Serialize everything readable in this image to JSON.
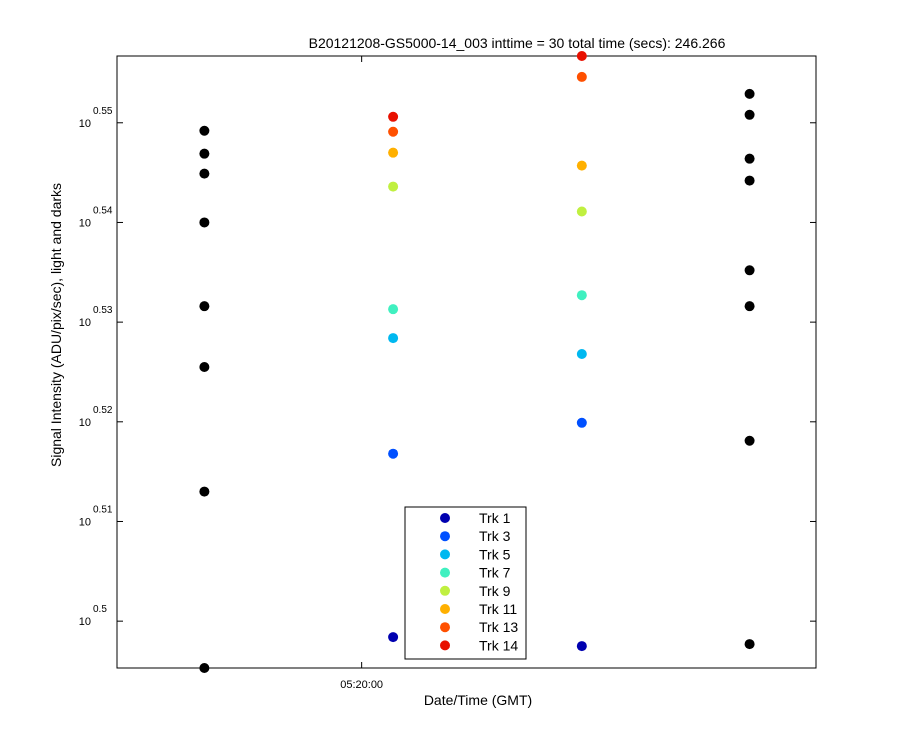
{
  "chart_data": {
    "type": "scatter",
    "title": "B20121208-GS5000-14_003 inttime = 30 total time (secs): 246.266",
    "xlabel": "Date/Time (GMT)",
    "ylabel": "Signal Intensity (ADU/pix/sec), light and darks",
    "y_scale": "log",
    "ylim_exponent": [
      0.4953,
      0.5567
    ],
    "y_ticks": [
      {
        "base": "10",
        "exp": "0.5",
        "value": 0.5
      },
      {
        "base": "10",
        "exp": "0.51",
        "value": 0.51
      },
      {
        "base": "10",
        "exp": "0.52",
        "value": 0.52
      },
      {
        "base": "10",
        "exp": "0.53",
        "value": 0.53
      },
      {
        "base": "10",
        "exp": "0.54",
        "value": 0.54
      },
      {
        "base": "10",
        "exp": "0.55",
        "value": 0.55
      }
    ],
    "x_ticks": [
      {
        "label": "05:20:00",
        "pos": 0.35
      }
    ],
    "xlim": [
      0,
      1
    ],
    "grid": false,
    "legend_position": "bottom-center",
    "colors": {
      "dark": "#000000",
      "Trk 1": "#0000B0",
      "Trk 3": "#0050FF",
      "Trk 5": "#00B8F0",
      "Trk 7": "#40F0C0",
      "Trk 9": "#C0F040",
      "Trk 11": "#FFB000",
      "Trk 13": "#FF5000",
      "Trk 14": "#E81000"
    },
    "legend": [
      "Trk 1",
      "Trk 3",
      "Trk 5",
      "Trk 7",
      "Trk 9",
      "Trk 11",
      "Trk 13",
      "Trk 14"
    ],
    "series": [
      {
        "x": 0.125,
        "exps": [
          0.5492,
          0.5469,
          0.5449,
          0.54,
          0.5316,
          0.5255,
          0.513,
          0.4953
        ],
        "group": "dark"
      },
      {
        "x": 0.905,
        "exps": [
          0.5529,
          0.5508,
          0.5464,
          0.5442,
          0.5352,
          0.5316,
          0.5181,
          0.4977
        ],
        "group": "dark"
      },
      {
        "x": 0.395,
        "points": [
          {
            "track": "Trk 1",
            "exp": 0.4984
          },
          {
            "track": "Trk 3",
            "exp": 0.5168
          },
          {
            "track": "Trk 5",
            "exp": 0.5284
          },
          {
            "track": "Trk 7",
            "exp": 0.5313
          },
          {
            "track": "Trk 9",
            "exp": 0.5436
          },
          {
            "track": "Trk 11",
            "exp": 0.547
          },
          {
            "track": "Trk 13",
            "exp": 0.5491
          },
          {
            "track": "Trk 14",
            "exp": 0.5506
          }
        ]
      },
      {
        "x": 0.665,
        "points": [
          {
            "track": "Trk 1",
            "exp": 0.4975
          },
          {
            "track": "Trk 3",
            "exp": 0.5199
          },
          {
            "track": "Trk 5",
            "exp": 0.5268
          },
          {
            "track": "Trk 7",
            "exp": 0.5327
          },
          {
            "track": "Trk 9",
            "exp": 0.5411
          },
          {
            "track": "Trk 11",
            "exp": 0.5457
          },
          {
            "track": "Trk 13",
            "exp": 0.5546
          },
          {
            "track": "Trk 14",
            "exp": 0.5567
          }
        ]
      }
    ]
  }
}
